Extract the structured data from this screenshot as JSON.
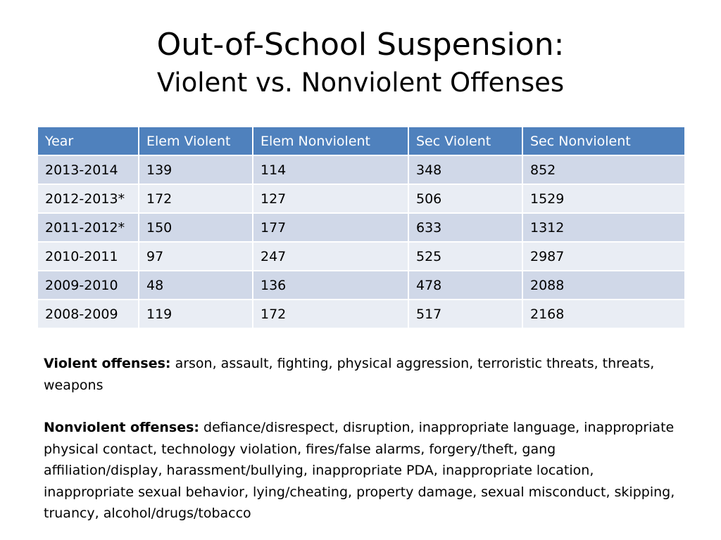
{
  "slide": {
    "title": "Out-of-School Suspension:",
    "subtitle": "Violent vs. Nonviolent Offenses"
  },
  "table": {
    "headers": [
      "Year",
      "Elem Violent",
      "Elem Nonviolent",
      "Sec Violent",
      "Sec Nonviolent"
    ],
    "rows": [
      [
        "2013-2014",
        "139",
        "114",
        "348",
        "852"
      ],
      [
        "2012-2013*",
        "172",
        "127",
        "506",
        "1529"
      ],
      [
        "2011-2012*",
        "150",
        "177",
        "633",
        "1312"
      ],
      [
        "2010-2011",
        "97",
        "247",
        "525",
        "2987"
      ],
      [
        "2009-2010",
        "48",
        "136",
        "478",
        "2088"
      ],
      [
        "2008-2009",
        "119",
        "172",
        "517",
        "2168"
      ]
    ]
  },
  "notes": {
    "violent_label": "Violent offenses:",
    "violent_text": " arson, assault, fighting, physical aggression, terroristic threats, threats, weapons",
    "nonviolent_label": "Nonviolent offenses:",
    "nonviolent_text": " defiance/disrespect, disruption, inappropriate language, inappropriate physical contact, technology violation, fires/false alarms, forgery/theft, gang affiliation/display, harassment/bullying, inappropriate PDA, inappropriate location, inappropriate sexual behavior, lying/cheating, property damage, sexual misconduct, skipping, truancy, alcohol/drugs/tobacco"
  },
  "colors": {
    "header_bg": "#4f81bd",
    "row_odd_bg": "#d0d8e8",
    "row_even_bg": "#e9edf4"
  }
}
